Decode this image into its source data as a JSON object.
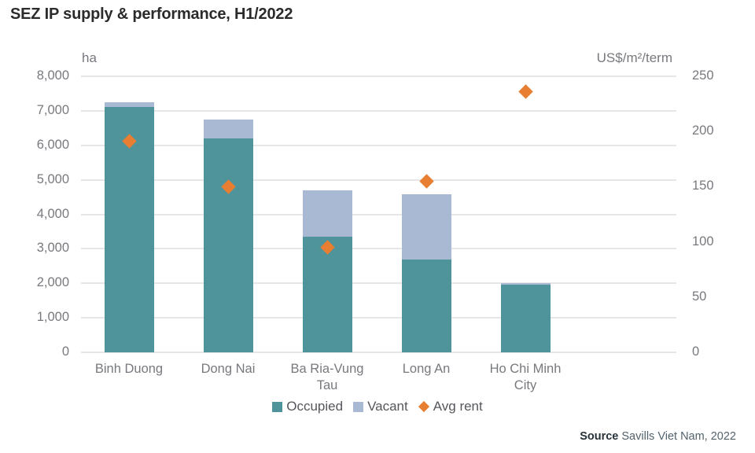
{
  "title": "SEZ IP supply & performance, H1/2022",
  "source": {
    "label": "Source",
    "text": " Savills Viet Nam, 2022"
  },
  "colors": {
    "occupied": "#4f939b",
    "vacant": "#a9b9d4",
    "avg_rent": "#e87e31",
    "grid": "#e6e6e8",
    "axis_text": "#77797e",
    "legend_text": "#55575c",
    "title_text": "#2b2b2b"
  },
  "chart_data": {
    "type": "bar",
    "stacked": true,
    "grid": true,
    "legend_position": "bottom",
    "categories": [
      "Binh Duong",
      "Dong Nai",
      "Ba Ria-Vung Tau",
      "Long An",
      "Ho Chi Minh City"
    ],
    "series": [
      {
        "name": "Occupied",
        "type": "bar",
        "axis": "left",
        "color": "#4f939b",
        "values": [
          7100,
          6200,
          3360,
          2700,
          1970
        ]
      },
      {
        "name": "Vacant",
        "type": "bar",
        "axis": "left",
        "color": "#a9b9d4",
        "values": [
          140,
          550,
          1340,
          1880,
          30
        ]
      },
      {
        "name": "Avg rent",
        "type": "scatter",
        "marker": "diamond",
        "axis": "right",
        "color": "#e87e31",
        "values": [
          191,
          150,
          95,
          155,
          236
        ]
      }
    ],
    "left_axis": {
      "label": "ha",
      "min": 0,
      "max": 8000,
      "tick_step": 1000,
      "tick_labels": [
        "8,000",
        "7,000",
        "6,000",
        "5,000",
        "4,000",
        "3,000",
        "2,000",
        "1,000",
        "0"
      ]
    },
    "right_axis": {
      "label": "US$/m²/term",
      "min": 0,
      "max": 250,
      "tick_step": 50,
      "tick_labels": [
        "250",
        "200",
        "150",
        "100",
        "50",
        "0"
      ]
    },
    "legend": [
      "Occupied",
      "Vacant",
      "Avg rent"
    ]
  }
}
